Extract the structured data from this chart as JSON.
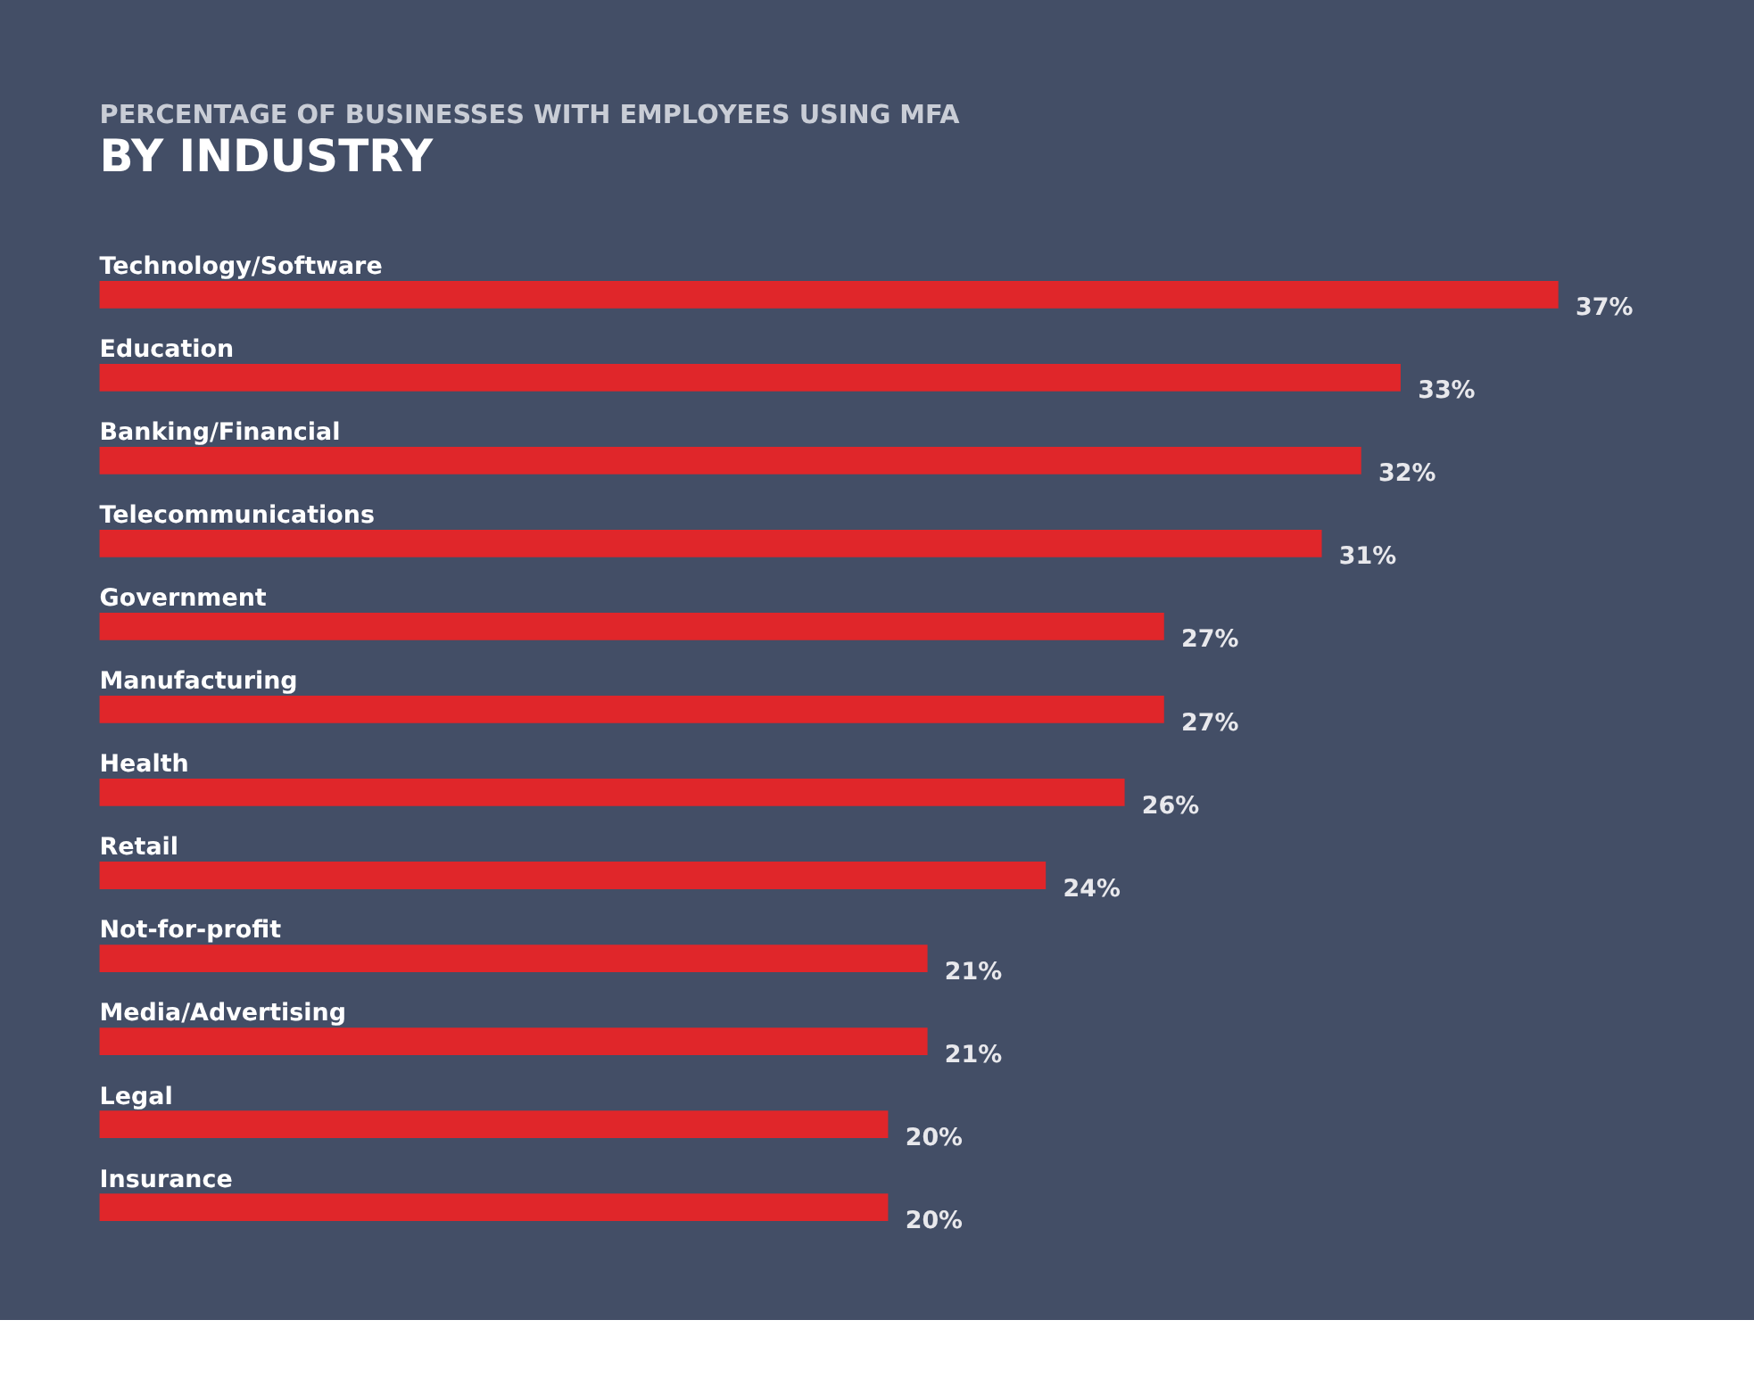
{
  "chart_data": {
    "type": "bar",
    "orientation": "horizontal",
    "title": "PERCENTAGE OF BUSINESSES WITH EMPLOYEES USING MFA",
    "subtitle": "BY INDUSTRY",
    "categories": [
      "Technology/Software",
      "Education",
      "Banking/Financial",
      "Telecommunications",
      "Government",
      "Manufacturing",
      "Health",
      "Retail",
      "Not-for-profit",
      "Media/Advertising",
      "Legal",
      "Insurance"
    ],
    "values": [
      37,
      33,
      32,
      31,
      27,
      27,
      26,
      24,
      21,
      21,
      20,
      20
    ],
    "value_labels": [
      "37%",
      "33%",
      "32%",
      "31%",
      "27%",
      "27%",
      "26%",
      "24%",
      "21%",
      "21%",
      "20%",
      "20%"
    ],
    "color": "#e0262a"
  }
}
